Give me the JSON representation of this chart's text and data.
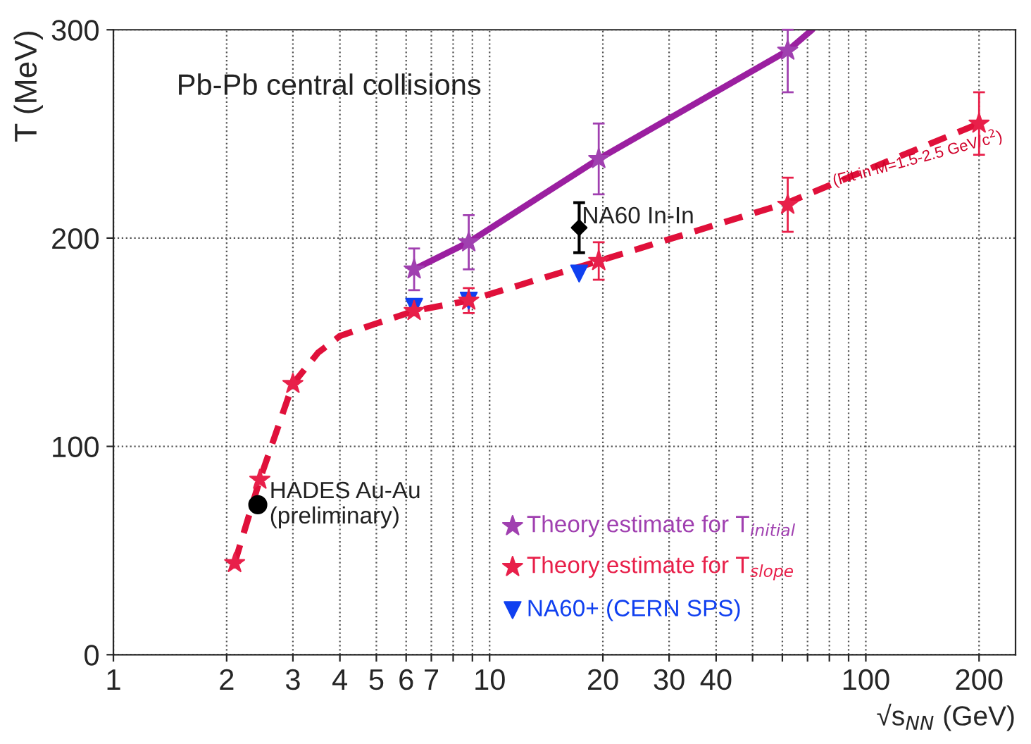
{
  "chart_data": {
    "type": "scatter",
    "xlabel": "√s$_{NN}$ (GeV)",
    "ylabel": "T (MeV)",
    "log": "x",
    "xlim": [
      1,
      250
    ],
    "ylim": [
      0,
      300
    ],
    "xticks": [
      1,
      2,
      3,
      4,
      5,
      6,
      7,
      {
        "value": 8,
        "label": null
      },
      {
        "value": 9,
        "label": null
      },
      10,
      20,
      30,
      40,
      {
        "value": 50,
        "label": null
      },
      {
        "value": 60,
        "label": null
      },
      {
        "value": 70,
        "label": null
      },
      {
        "value": 80,
        "label": null
      },
      {
        "value": 90,
        "label": null
      },
      100,
      200
    ],
    "yticks": [
      0,
      100,
      200,
      300
    ],
    "grid": true,
    "legend": "bottom right",
    "series": [
      {
        "type": "line",
        "color": "#9b1fa0",
        "line_style": "solid",
        "marker": "none",
        "x": [
          6.3,
          8.8,
          19.5,
          62,
          72
        ],
        "values": [
          185,
          198,
          238,
          290,
          300
        ]
      },
      {
        "type": "line",
        "color": "#e0103a",
        "line_style": "dashed",
        "marker": "none",
        "x": [
          2.1,
          2.45,
          3,
          3.5,
          4,
          5,
          6.3,
          8.8,
          19.5,
          62,
          200
        ],
        "values": [
          44,
          84,
          130,
          145,
          153,
          159,
          165,
          170,
          189,
          217,
          255
        ]
      },
      {
        "name": "Theory estimate for T$_{initial}$",
        "color": "#a040b0",
        "marker": "star",
        "x": [
          6.3,
          8.8,
          19.5,
          62
        ],
        "values": [
          185,
          198,
          238,
          290
        ],
        "errors": [
          10,
          13,
          17,
          [
            270,
            300
          ]
        ]
      },
      {
        "name": "Theory estimate for T$_{slope}$",
        "color": "#e8204a",
        "marker": "star",
        "x": [
          2.1,
          2.45,
          3,
          6.3,
          8.8,
          19.5,
          62,
          200
        ],
        "values": [
          44,
          84,
          130,
          165,
          170,
          189,
          216,
          255
        ],
        "errors": [
          null,
          null,
          null,
          null,
          6,
          9,
          13,
          15
        ]
      },
      {
        "name": "NA60+ (CERN SPS)",
        "color": "#1040f0",
        "marker": "triangle",
        "x": [
          6.3,
          8.8,
          17.3
        ],
        "values": [
          167,
          170,
          183
        ]
      },
      {
        "color": "#000000",
        "marker": "circle",
        "x": [
          2.42
        ],
        "values": [
          72
        ]
      },
      {
        "color": "#000000",
        "marker": "diamond",
        "x": [
          17.3
        ],
        "values": [
          205
        ],
        "errors": [
          12
        ]
      }
    ],
    "annotations": [
      "Pb-Pb central collisions",
      {
        "text": "HADES Au-Au\n(preliminary)",
        "x": 2.6,
        "y": 72
      },
      {
        "text": "NA60 In-In",
        "x": 17.6,
        "y": 210
      },
      "(Fit in M=1.5-2.5 GeV/c$^{2}$)"
    ]
  }
}
